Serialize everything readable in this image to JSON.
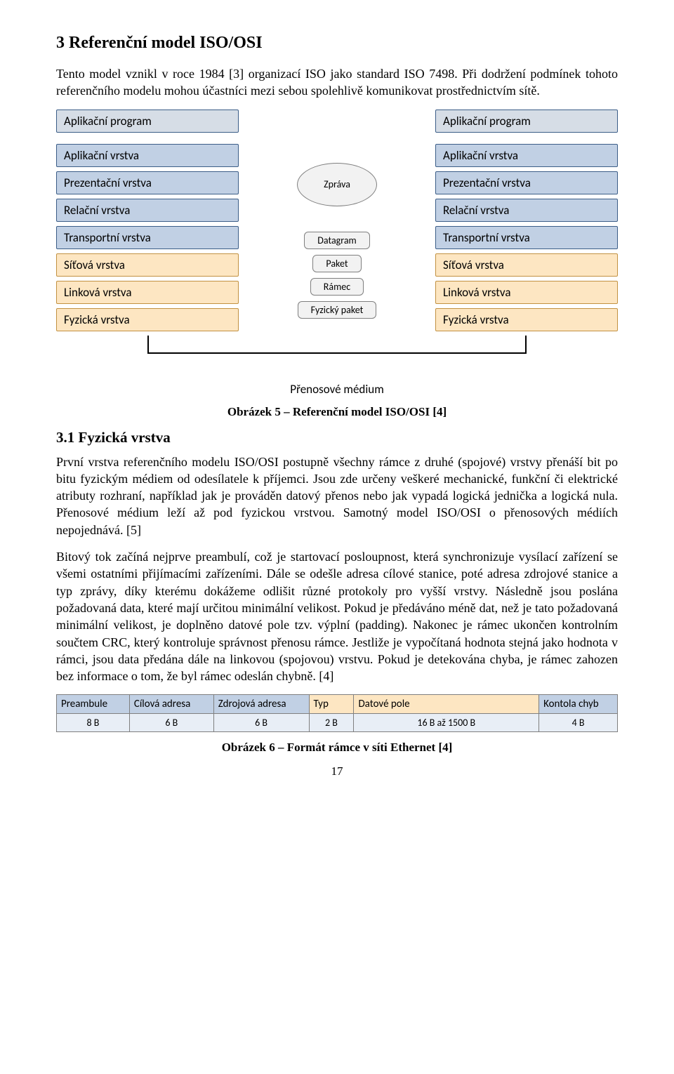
{
  "section_heading": "3  Referenční model ISO/OSI",
  "intro_paragraph": "Tento model vznikl v roce 1984 [3] organizací ISO jako standard ISO 7498. Při dodržení podmínek tohoto referenčního modelu mohou účastníci mezi sebou spolehlivě komunikovat prostřednictvím sítě.",
  "osi": {
    "colors": {
      "app_fill": "#d6dde6",
      "app_border": "#3b5d87",
      "blue_fill": "#c1d0e4",
      "blue_border": "#3b5d87",
      "yellow_fill": "#fde6c2",
      "yellow_border": "#c29141",
      "pill_fill": "#f2f2f2",
      "pill_border": "#7f7f7f"
    },
    "left_app": "Aplikační program",
    "right_app": "Aplikační program",
    "layers_left": [
      "Aplikační vrstva",
      "Prezentační vrstva",
      "Relační vrstva",
      "Transportní vrstva",
      "Síťová vrstva",
      "Linková vrstva",
      "Fyzická vrstva"
    ],
    "layers_right": [
      "Aplikační vrstva",
      "Prezentační vrstva",
      "Relační vrstva",
      "Transportní vrstva",
      "Síťová vrstva",
      "Linková vrstva",
      "Fyzická vrstva"
    ],
    "mid_items": [
      {
        "shape": "ellipse",
        "label": "Zpráva"
      },
      {
        "shape": "pill",
        "label": "Datagram"
      },
      {
        "shape": "pill",
        "label": "Paket"
      },
      {
        "shape": "pill",
        "label": "Rámec"
      },
      {
        "shape": "pill",
        "label": "Fyzický paket"
      }
    ],
    "medium_label": "Přenosové médium"
  },
  "caption_osi": "Obrázek 5 – Referenční model ISO/OSI [4]",
  "subsection_heading": "3.1  Fyzická vrstva",
  "para1": "První vrstva referenčního modelu ISO/OSI postupně všechny rámce z druhé (spojové) vrstvy přenáší bit po bitu fyzickým médiem od odesílatele k příjemci. Jsou zde určeny veškeré mechanické, funkční či elektrické atributy rozhraní, například jak je prováděn datový přenos nebo jak vypadá logická jednička a logická nula. Přenosové médium leží až pod fyzickou vrstvou. Samotný model ISO/OSI o přenosových médiích nepojednává. [5]",
  "para2": "Bitový tok začíná nejprve preambulí, což je startovací posloupnost, která synchronizuje vysílací zařízení se všemi ostatními přijímacími zařízeními. Dále se odešle adresa cílové stanice, poté adresa zdrojové stanice a typ zprávy, díky kterému dokážeme odlišit různé protokoly pro vyšší vrstvy. Následně jsou poslána požadovaná data, které mají určitou minimální velikost. Pokud je předáváno méně dat, než je tato požadovaná minimální velikost, je doplněno datové pole tzv. výplní (padding). Nakonec je rámec ukončen kontrolním součtem CRC, který kontroluje správnost přenosu rámce. Jestliže je vypočítaná hodnota stejná jako hodnota v rámci, jsou data předána dále na linkovou (spojovou) vrstvu. Pokud je detekována chyba, je rámec zahozen bez informace o tom, že byl rámec odeslán chybně. [4]",
  "frame": {
    "colors": {
      "blue_fill": "#c1d0e4",
      "yellow_fill": "#fde6c2",
      "size_fill": "#e8eef6",
      "border": "#7f7f7f"
    },
    "columns": [
      {
        "label": "Preambule",
        "size": "8 B",
        "fill_key": "blue",
        "width_pct": 13
      },
      {
        "label": "Cílová adresa",
        "size": "6 B",
        "fill_key": "blue",
        "width_pct": 15
      },
      {
        "label": "Zdrojová adresa",
        "size": "6 B",
        "fill_key": "blue",
        "width_pct": 17
      },
      {
        "label": "Typ",
        "size": "2 B",
        "fill_key": "yellow",
        "width_pct": 8
      },
      {
        "label": "Datové pole",
        "size": "16 B až 1500 B",
        "fill_key": "yellow",
        "width_pct": 33
      },
      {
        "label": "Kontola chyb",
        "size": "4 B",
        "fill_key": "blue",
        "width_pct": 14
      }
    ]
  },
  "caption_frame": "Obrázek 6 – Formát rámce v síti Ethernet [4]",
  "page_number": "17"
}
